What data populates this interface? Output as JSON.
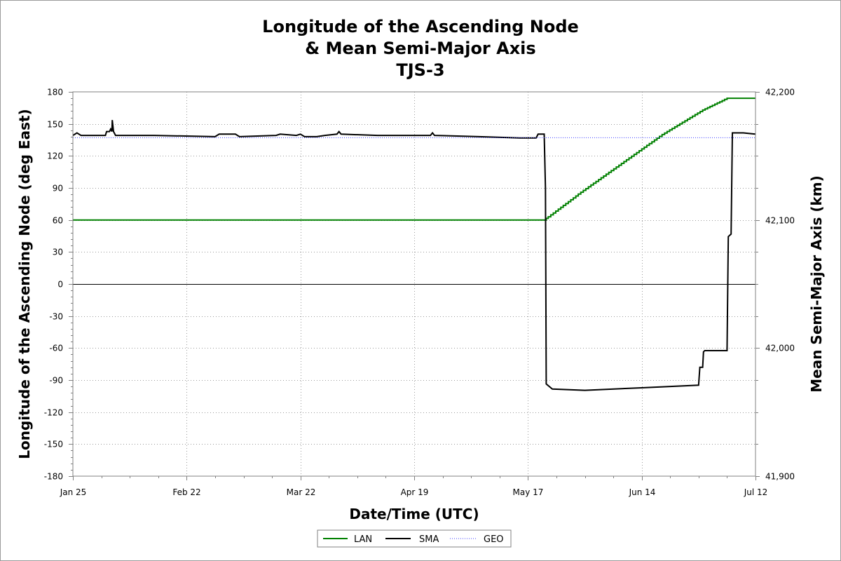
{
  "chart_data": {
    "type": "line",
    "title_lines": [
      "Longitude of the Ascending Node",
      "& Mean Semi-Major Axis",
      "TJS-3"
    ],
    "xlabel": "Date/Time (UTC)",
    "ylabel_left": "Longitude of the Ascending Node (deg East)",
    "ylabel_right": "Mean Semi-Major Axis (km)",
    "x_range_days": [
      0,
      168
    ],
    "x_ticks": [
      {
        "day": 0,
        "label": "Jan 25"
      },
      {
        "day": 28,
        "label": "Feb 22"
      },
      {
        "day": 56,
        "label": "Mar 22"
      },
      {
        "day": 84,
        "label": "Apr 19"
      },
      {
        "day": 112,
        "label": "May 17"
      },
      {
        "day": 140,
        "label": "Jun 14"
      },
      {
        "day": 168,
        "label": "Jul 12"
      }
    ],
    "ylim_left": [
      -180,
      180
    ],
    "y_ticks_left": [
      "180",
      "150",
      "120",
      "90",
      "60",
      "30",
      "0",
      "-30",
      "-60",
      "-90",
      "-120",
      "-150",
      "-180"
    ],
    "ylim_right": [
      41900,
      42200
    ],
    "y_ticks_right": [
      {
        "value": 42200,
        "label": "42,200"
      },
      {
        "value": 42100,
        "label": "42,100"
      },
      {
        "value": 42000,
        "label": "42,000"
      },
      {
        "value": 41900,
        "label": "41,900"
      }
    ],
    "series": [
      {
        "name": "LAN",
        "axis": "left",
        "color": "#008000",
        "style": "step",
        "points": [
          [
            0,
            60
          ],
          [
            116,
            60
          ],
          [
            117,
            63
          ],
          [
            125,
            86
          ],
          [
            135,
            113
          ],
          [
            145,
            140
          ],
          [
            155,
            163
          ],
          [
            161,
            174
          ],
          [
            168,
            174
          ]
        ]
      },
      {
        "name": "SMA",
        "axis": "right",
        "color": "#000000",
        "style": "solid",
        "points": [
          [
            0,
            42166
          ],
          [
            1,
            42168
          ],
          [
            2,
            42166
          ],
          [
            8,
            42166
          ],
          [
            8.3,
            42169
          ],
          [
            9,
            42169
          ],
          [
            9.3,
            42171
          ],
          [
            9.6,
            42169
          ],
          [
            9.7,
            42178
          ],
          [
            10,
            42169
          ],
          [
            10.5,
            42166
          ],
          [
            20,
            42166
          ],
          [
            35,
            42165
          ],
          [
            36,
            42167
          ],
          [
            40,
            42167
          ],
          [
            41,
            42165
          ],
          [
            50,
            42166
          ],
          [
            51,
            42167
          ],
          [
            55,
            42166
          ],
          [
            56,
            42167
          ],
          [
            57,
            42165
          ],
          [
            60,
            42165
          ],
          [
            62,
            42166
          ],
          [
            65,
            42167
          ],
          [
            65.5,
            42169
          ],
          [
            66,
            42167
          ],
          [
            75,
            42166
          ],
          [
            88,
            42166
          ],
          [
            88.5,
            42168
          ],
          [
            89,
            42166
          ],
          [
            100,
            42165
          ],
          [
            110,
            42164
          ],
          [
            114,
            42164
          ],
          [
            114.5,
            42167
          ],
          [
            116,
            42167
          ],
          [
            116.3,
            42125
          ],
          [
            116.5,
            41972
          ],
          [
            118,
            41968
          ],
          [
            126,
            41967
          ],
          [
            140,
            41969
          ],
          [
            154,
            41971
          ],
          [
            154.3,
            41985
          ],
          [
            155,
            41985
          ],
          [
            155.2,
            41997
          ],
          [
            155.5,
            41998
          ],
          [
            161,
            41998
          ],
          [
            161.3,
            42087
          ],
          [
            162,
            42089
          ],
          [
            162.3,
            42168
          ],
          [
            165,
            42168
          ],
          [
            168,
            42167
          ]
        ]
      },
      {
        "name": "GEO",
        "axis": "right",
        "color": "#4040ff",
        "style": "dotted",
        "points": [
          [
            0,
            42164.2
          ],
          [
            168,
            42164.2
          ]
        ]
      }
    ],
    "legend": [
      "LAN",
      "SMA",
      "GEO"
    ]
  }
}
